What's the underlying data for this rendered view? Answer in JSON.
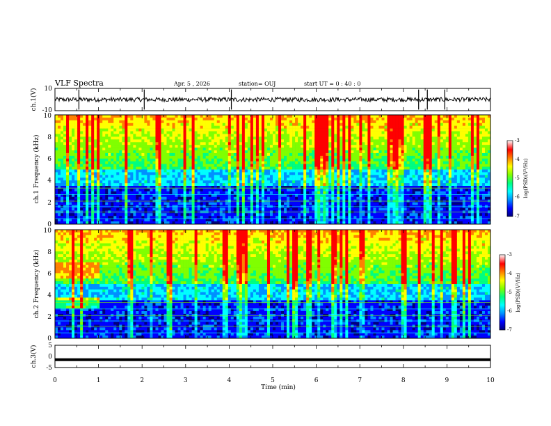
{
  "header": {
    "title": "VLF Spectra",
    "date": "Apr. 5 , 2026",
    "station": "station= OUJ",
    "start": "start UT = 0 : 40 : 0"
  },
  "colors": {
    "spectrogram_scale": [
      "#00007a",
      "#0000ff",
      "#0090ff",
      "#00ffff",
      "#00ff80",
      "#80ff00",
      "#ffff00",
      "#ff8000",
      "#ff0000",
      "#ffffff"
    ],
    "trace": "#000000"
  },
  "chart_data": [
    {
      "type": "line",
      "panel": "ch1-waveform",
      "ylabel": "ch.1(V)",
      "ylim": [
        -10,
        10
      ],
      "yticks": [
        "10",
        "-10"
      ],
      "xlim": [
        0,
        10
      ],
      "baseline": 0,
      "spike_times_min": [
        0.55,
        2.05,
        4.05,
        8.35,
        8.55,
        8.95
      ]
    },
    {
      "type": "heatmap",
      "panel": "ch1-spectrogram",
      "ylabel": "ch.1 Frequency (kHz)",
      "xlim": [
        0,
        10
      ],
      "ylim": [
        0,
        10
      ],
      "yticks": [
        "0",
        "2",
        "4",
        "6",
        "8",
        "10"
      ],
      "colorbar": {
        "label": "log(PSD)(V²/Hz)",
        "range": [
          -7,
          -3
        ],
        "ticks": [
          "-3",
          "-4",
          "-5",
          "-6",
          "-7"
        ]
      }
    },
    {
      "type": "heatmap",
      "panel": "ch2-spectrogram",
      "ylabel": "ch.2 Frequency (kHz)",
      "xlim": [
        0,
        10
      ],
      "ylim": [
        0,
        10
      ],
      "yticks": [
        "0",
        "2",
        "4",
        "6",
        "8",
        "10"
      ],
      "colorbar": {
        "label": "log(PSD)(V²/Hz)",
        "range": [
          -7,
          -3
        ],
        "ticks": [
          "-3",
          "-4",
          "-5",
          "-6",
          "-7"
        ]
      }
    },
    {
      "type": "line",
      "panel": "ch3-waveform",
      "ylabel": "ch.3(V)",
      "ylim": [
        -5,
        5
      ],
      "yticks": [
        "5",
        "0",
        "-5"
      ],
      "xlim": [
        0,
        10
      ],
      "level": -1.5
    }
  ],
  "xaxis": {
    "label": "Time (min)",
    "ticks": [
      "0",
      "1",
      "2",
      "3",
      "4",
      "5",
      "6",
      "7",
      "8",
      "9",
      "10"
    ]
  }
}
